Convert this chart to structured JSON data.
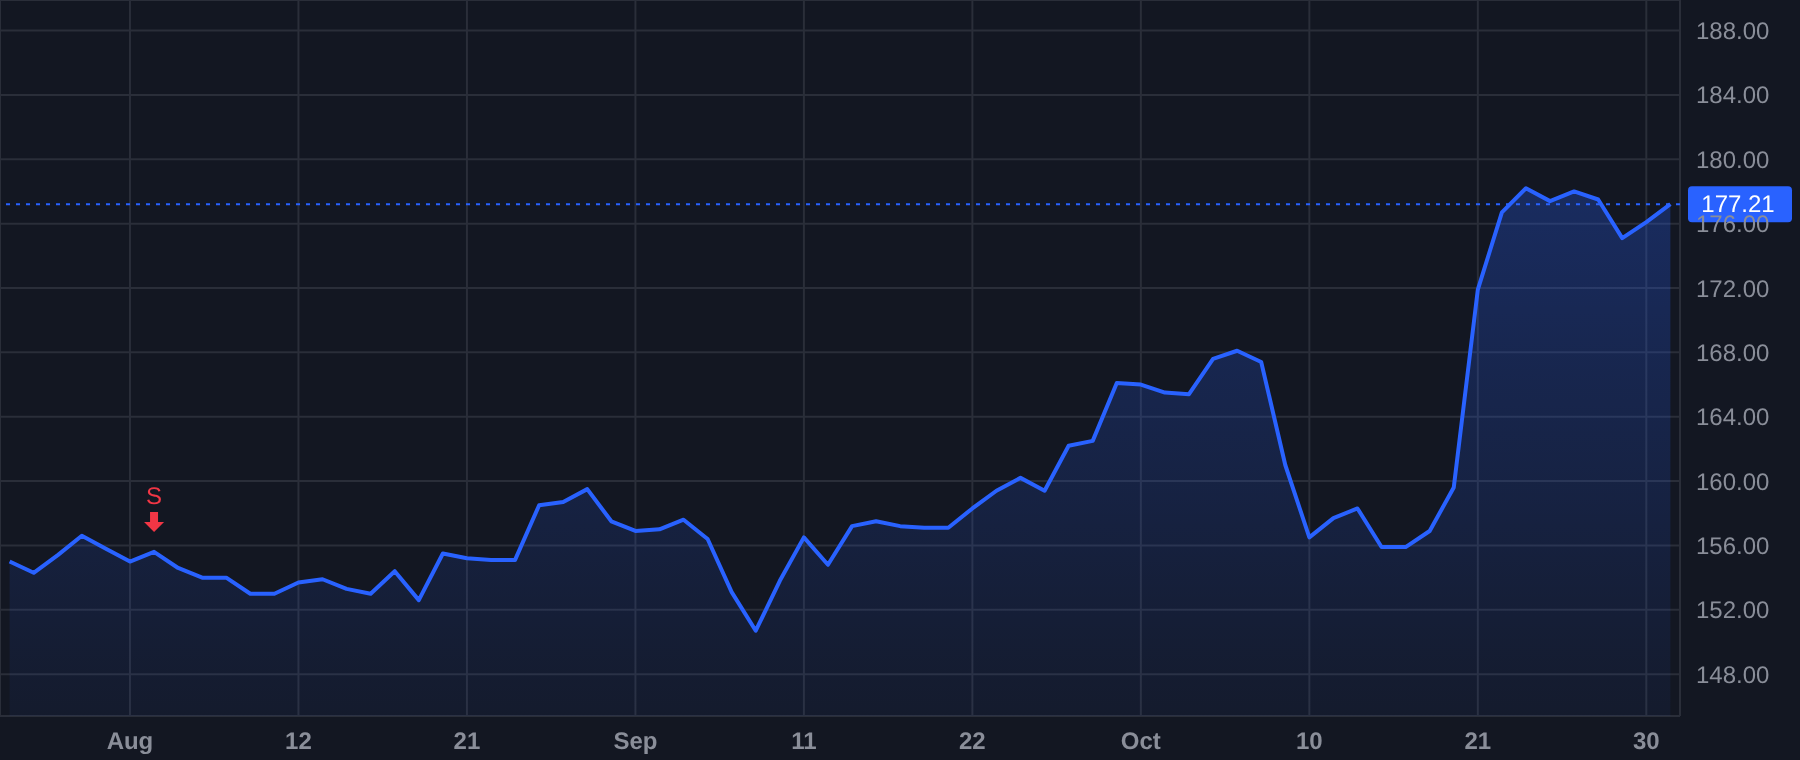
{
  "chart_data": {
    "type": "area",
    "categories": [
      null,
      null,
      null,
      null,
      null,
      "Aug",
      null,
      null,
      null,
      null,
      null,
      null,
      "12",
      null,
      null,
      null,
      null,
      null,
      null,
      "21",
      null,
      null,
      null,
      null,
      null,
      null,
      "Sep",
      null,
      null,
      null,
      null,
      null,
      null,
      "11",
      null,
      null,
      null,
      null,
      null,
      null,
      "22",
      null,
      null,
      null,
      null,
      null,
      null,
      "Oct",
      null,
      null,
      null,
      null,
      null,
      null,
      "10",
      null,
      null,
      null,
      null,
      null,
      null,
      "21",
      null,
      null,
      null,
      null,
      null,
      null,
      "30",
      null
    ],
    "series": [
      {
        "color": "#2962ff",
        "values": [
          155.0,
          154.3,
          155.4,
          156.6,
          155.8,
          155.0,
          155.6,
          154.6,
          154.0,
          154.0,
          153.0,
          153.0,
          153.7,
          153.9,
          153.3,
          153.0,
          154.4,
          152.6,
          155.5,
          155.2,
          155.1,
          155.1,
          158.5,
          158.7,
          159.5,
          157.5,
          156.9,
          157.0,
          157.6,
          156.4,
          153.1,
          150.7,
          153.8,
          156.5,
          154.8,
          157.2,
          157.5,
          157.2,
          157.1,
          157.1,
          158.3,
          159.4,
          160.2,
          159.4,
          162.2,
          162.5,
          166.1,
          166.0,
          165.5,
          165.4,
          167.6,
          168.1,
          167.4,
          161.0,
          156.5,
          157.7,
          158.3,
          155.9,
          155.9,
          156.9,
          159.6,
          171.9,
          176.7,
          178.2,
          177.4,
          178.0,
          177.5,
          175.1,
          176.1,
          177.21
        ]
      }
    ],
    "ylim": [
      145.4,
      189.9
    ],
    "yticks": [
      {
        "value": 148,
        "label": "148.00"
      },
      {
        "value": 152,
        "label": "152.00"
      },
      {
        "value": 156,
        "label": "156.00"
      },
      {
        "value": 160,
        "label": "160.00"
      },
      {
        "value": 164,
        "label": "164.00"
      },
      {
        "value": 168,
        "label": "168.00"
      },
      {
        "value": 172,
        "label": "172.00"
      },
      {
        "value": 176,
        "label": "176.00"
      },
      {
        "value": 180,
        "label": "180.00"
      },
      {
        "value": 184,
        "label": "184.00"
      },
      {
        "value": 188,
        "label": "188.00"
      }
    ],
    "ref_lines": [
      {
        "axis": "y",
        "value": 177.21,
        "label": "177.21",
        "color": "#2962ff",
        "line_style": "dotted"
      }
    ],
    "annotations": [
      {
        "text": "S",
        "y": 155.6
      }
    ],
    "grid": true,
    "marker": "none",
    "line_style": "solid"
  }
}
